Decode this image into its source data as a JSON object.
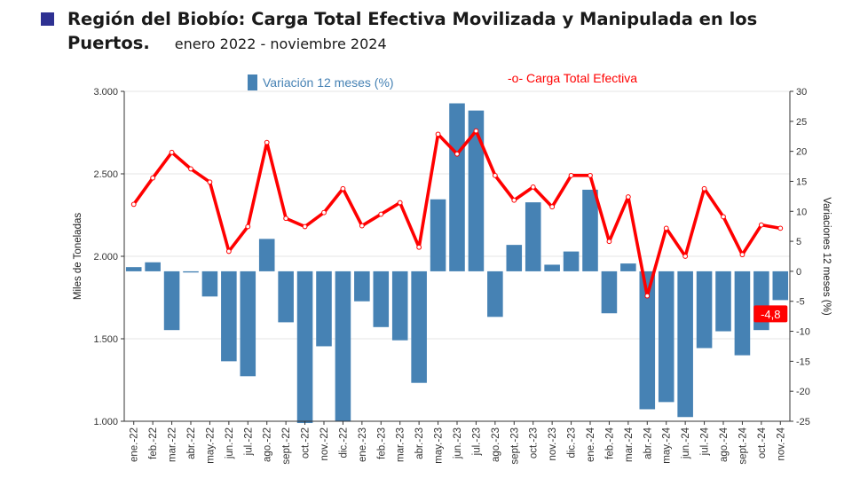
{
  "title": {
    "main": "Región del Biobío: Carga Total Efectiva Movilizada y Manipulada en los Puertos.",
    "period": "enero 2022 - noviembre 2024"
  },
  "colors": {
    "bar": "#4682b4",
    "line": "#ff0000",
    "title_square": "#2e3192",
    "callout_bg": "#ff0000",
    "callout_text": "#ffffff"
  },
  "chart_data": {
    "type": "bar+line",
    "categories": [
      "ene.-22",
      "feb.-22",
      "mar.-22",
      "abr.-22",
      "may.-22",
      "jun.-22",
      "jul.-22",
      "ago.-22",
      "sept.-22",
      "oct.-22",
      "nov.-22",
      "dic.-22",
      "ene.-23",
      "feb.-23",
      "mar.-23",
      "abr.-23",
      "may.-23",
      "jun.-23",
      "jul.-23",
      "ago.-23",
      "sept.-23",
      "oct.-23",
      "nov.-23",
      "dic.-23",
      "ene.-24",
      "feb.-24",
      "mar.-24",
      "abr.-24",
      "may.-24",
      "jun.-24",
      "jul.-24",
      "ago.-24",
      "sept.-24",
      "oct.-24",
      "nov.-24"
    ],
    "series": [
      {
        "name": "Variación 12 meses (%)",
        "type": "bar",
        "axis": "right",
        "values": [
          0.7,
          1.5,
          -9.8,
          -0.2,
          -4.2,
          -15.0,
          -17.5,
          5.4,
          -8.5,
          -25.3,
          -12.5,
          -25.0,
          -5.0,
          -9.3,
          -11.5,
          -18.6,
          12.0,
          28.0,
          26.8,
          -7.6,
          4.4,
          11.5,
          1.1,
          3.3,
          13.6,
          -7.0,
          1.3,
          -23.0,
          -21.8,
          -24.3,
          -12.8,
          -10.0,
          -14.0,
          -9.8,
          -4.8
        ]
      },
      {
        "name": "Carga Total Efectiva",
        "type": "line",
        "axis": "left",
        "values": [
          2315,
          2475,
          2630,
          2530,
          2450,
          2030,
          2180,
          2690,
          2230,
          2180,
          2265,
          2410,
          2185,
          2255,
          2325,
          2055,
          2740,
          2620,
          2760,
          2490,
          2340,
          2420,
          2300,
          2490,
          2490,
          2090,
          2360,
          1760,
          2170,
          2000,
          2410,
          2240,
          2010,
          2190,
          2170
        ]
      }
    ],
    "legend": {
      "bar_label": "Variación 12 meses (%)",
      "line_label": "-o- Carga Total Efectiva",
      "position": "top"
    },
    "callout": {
      "label": "-4,8",
      "index": 34
    },
    "y_left": {
      "label": "Miles de Toneladas",
      "range": [
        1000,
        3000
      ],
      "ticks": [
        1000,
        1500,
        2000,
        2500,
        3000
      ],
      "tick_labels": [
        "1.000",
        "1.500",
        "2.000",
        "2.500",
        "3.000"
      ]
    },
    "y_right": {
      "label": "Variaciones 12 meses (%)",
      "range": [
        -25,
        30
      ],
      "ticks": [
        -25,
        -20,
        -15,
        -10,
        -5,
        0,
        5,
        10,
        15,
        20,
        25,
        30
      ],
      "tick_labels": [
        "-25",
        "-20",
        "-15",
        "-10",
        "-5",
        "0",
        "5",
        "10",
        "15",
        "20",
        "25",
        "30"
      ]
    }
  }
}
